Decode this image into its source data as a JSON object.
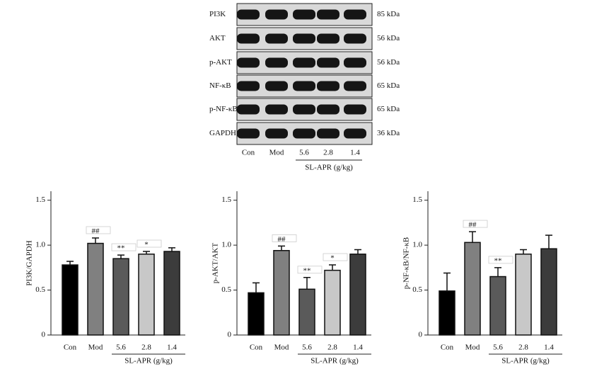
{
  "blot": {
    "rows": [
      {
        "label": "PI3K",
        "size": "85 kDa"
      },
      {
        "label": "AKT",
        "size": "56 kDa"
      },
      {
        "label": "p-AKT",
        "size": "56 kDa"
      },
      {
        "label": "NF-κB",
        "size": "65 kDa"
      },
      {
        "label": "p-NF-κB",
        "size": "65 kDa"
      },
      {
        "label": "GAPDH",
        "size": "36 kDa"
      }
    ],
    "lanes": [
      "Con",
      "Mod",
      "5.6",
      "2.8",
      "1.4"
    ],
    "group_label": "SL-APR (g/kg)"
  },
  "chart_data": [
    {
      "type": "bar",
      "y_label": "PI3K/GAPDH",
      "categories": [
        "Con",
        "Mod",
        "5.6",
        "2.8",
        "1.4"
      ],
      "group_label": "SL-APR (g/kg)",
      "values": [
        0.78,
        1.02,
        0.85,
        0.9,
        0.93
      ],
      "errors": [
        0.04,
        0.06,
        0.04,
        0.03,
        0.04
      ],
      "annotations": [
        null,
        "##",
        "**",
        "*",
        null
      ],
      "colors": [
        "#000000",
        "#808080",
        "#5a5a5a",
        "#c8c8c8",
        "#3c3c3c"
      ],
      "ylim": [
        0,
        1.6
      ],
      "yticks": [
        0,
        0.5,
        {
          "value": 1,
          "label": "1.0"
        },
        1.5
      ]
    },
    {
      "type": "bar",
      "y_label": "p-AKT/AKT",
      "categories": [
        "Con",
        "Mod",
        "5.6",
        "2.8",
        "1.4"
      ],
      "group_label": "SL-APR (g/kg)",
      "values": [
        0.47,
        0.94,
        0.51,
        0.72,
        0.9
      ],
      "errors": [
        0.11,
        0.05,
        0.13,
        0.06,
        0.05
      ],
      "annotations": [
        null,
        "##",
        "**",
        "*",
        null
      ],
      "colors": [
        "#000000",
        "#808080",
        "#5a5a5a",
        "#c8c8c8",
        "#3c3c3c"
      ],
      "ylim": [
        0,
        1.6
      ],
      "yticks": [
        0,
        0.5,
        {
          "value": 1,
          "label": "1.0"
        },
        1.5
      ]
    },
    {
      "type": "bar",
      "y_label": "p-NF-κB/NF-κB",
      "categories": [
        "Con",
        "Mod",
        "5.6",
        "2.8",
        "1.4"
      ],
      "group_label": "SL-APR (g/kg)",
      "values": [
        0.49,
        1.03,
        0.65,
        0.9,
        0.96
      ],
      "errors": [
        0.2,
        0.12,
        0.1,
        0.05,
        0.15
      ],
      "annotations": [
        null,
        "##",
        "**",
        null,
        null
      ],
      "colors": [
        "#000000",
        "#808080",
        "#5a5a5a",
        "#c8c8c8",
        "#3c3c3c"
      ],
      "ylim": [
        0,
        1.6
      ],
      "yticks": [
        0,
        0.5,
        {
          "value": 1,
          "label": "1.0"
        },
        1.5
      ]
    }
  ]
}
